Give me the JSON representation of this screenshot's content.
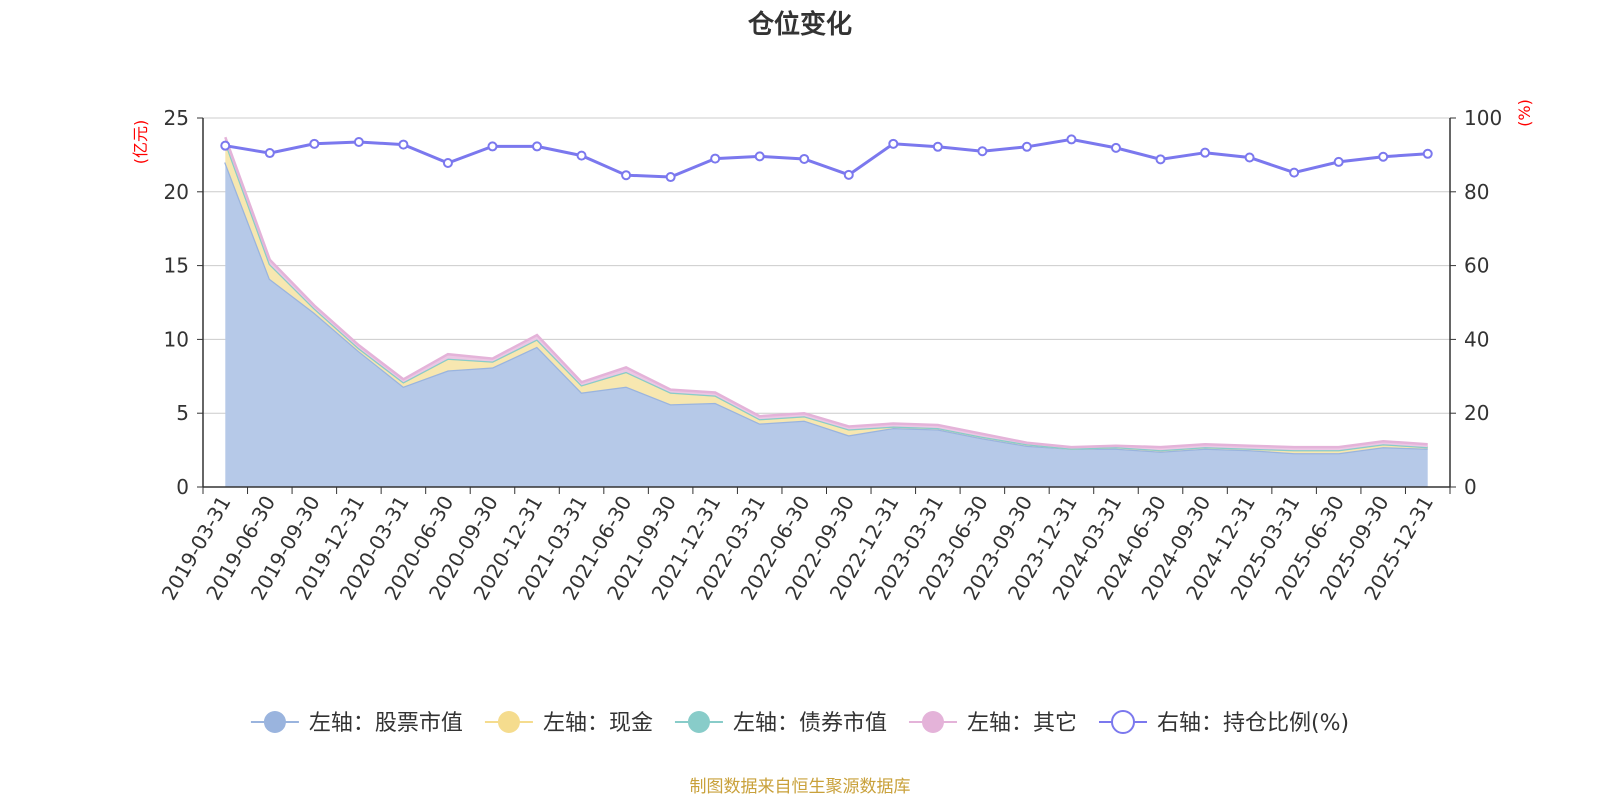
{
  "chart_data": {
    "type": "area",
    "title": "仓位变化",
    "left_unit": "(亿元)",
    "right_unit": "(%)",
    "left_ylim": [
      0,
      25
    ],
    "left_ticks": [
      "0",
      "5",
      "10",
      "15",
      "20",
      "25"
    ],
    "right_ylim": [
      0,
      100
    ],
    "right_ticks": [
      "0",
      "20",
      "40",
      "60",
      "80",
      "100"
    ],
    "categories": [
      "2019-03-31",
      "2019-06-30",
      "2019-09-30",
      "2019-12-31",
      "2020-03-31",
      "2020-06-30",
      "2020-09-30",
      "2020-12-31",
      "2021-03-31",
      "2021-06-30",
      "2021-09-30",
      "2021-12-31",
      "2022-03-31",
      "2022-06-30",
      "2022-09-30",
      "2022-12-31",
      "2023-03-31",
      "2023-06-30",
      "2023-09-30",
      "2023-12-31",
      "2024-03-31",
      "2024-06-30",
      "2024-09-30",
      "2024-12-31",
      "2025-03-31",
      "2025-06-30",
      "2025-09-30",
      "2025-12-31"
    ],
    "stacked_series": [
      {
        "name": "左轴：股票市值",
        "axis": "left",
        "color": "#9ab4de",
        "fill": "#b6c9e8",
        "values": [
          22.0,
          14.1,
          11.8,
          9.2,
          6.8,
          7.9,
          8.1,
          9.5,
          6.4,
          6.8,
          5.6,
          5.7,
          4.3,
          4.5,
          3.5,
          4.0,
          3.9,
          3.3,
          2.8,
          2.6,
          2.6,
          2.4,
          2.6,
          2.5,
          2.3,
          2.3,
          2.7,
          2.6
        ]
      },
      {
        "name": "左轴：现金",
        "axis": "left",
        "color": "#f5dc8e",
        "fill": "#f7e7b0",
        "values": [
          1.4,
          1.0,
          0.3,
          0.2,
          0.3,
          0.8,
          0.4,
          0.5,
          0.5,
          1.0,
          0.8,
          0.5,
          0.3,
          0.3,
          0.4,
          0.1,
          0.1,
          0.1,
          0.1,
          0.0,
          0.1,
          0.1,
          0.1,
          0.1,
          0.2,
          0.2,
          0.2,
          0.1
        ]
      },
      {
        "name": "左轴：债券市值",
        "axis": "left",
        "color": "#88ccc9",
        "fill": "#a7dad7",
        "values": [
          0,
          0,
          0,
          0,
          0,
          0,
          0,
          0,
          0,
          0,
          0,
          0,
          0,
          0,
          0,
          0,
          0,
          0,
          0,
          0,
          0,
          0,
          0,
          0,
          0,
          0,
          0,
          0
        ]
      },
      {
        "name": "左轴：其它",
        "axis": "left",
        "color": "#e4b3d9",
        "fill": "#ecc7e4",
        "values": [
          0.3,
          0.3,
          0.2,
          0.2,
          0.2,
          0.3,
          0.2,
          0.3,
          0.2,
          0.3,
          0.2,
          0.2,
          0.2,
          0.2,
          0.2,
          0.2,
          0.2,
          0.2,
          0.1,
          0.1,
          0.1,
          0.2,
          0.2,
          0.2,
          0.2,
          0.2,
          0.2,
          0.2
        ]
      }
    ],
    "line_series": {
      "name": "右轴：持仓比例(%)",
      "axis": "right",
      "color": "#7b78ee",
      "values": [
        92.5,
        90.5,
        93.0,
        93.5,
        92.8,
        87.8,
        92.3,
        92.3,
        89.8,
        84.5,
        84.0,
        89.0,
        89.6,
        88.9,
        84.6,
        93.0,
        92.2,
        91.0,
        92.2,
        94.2,
        91.9,
        88.8,
        90.6,
        89.3,
        85.2,
        88.1,
        89.5,
        90.3
      ]
    },
    "legend_position": "bottom",
    "grid": true
  },
  "source_note": "制图数据来自恒生聚源数据库"
}
